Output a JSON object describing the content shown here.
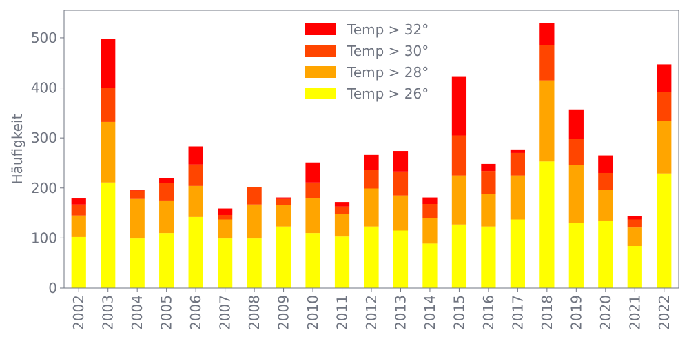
{
  "chart_data": {
    "type": "bar",
    "stacked": true,
    "title": "",
    "xlabel": "",
    "ylabel": "Häufigkeit",
    "ylim": [
      0,
      555
    ],
    "yticks": [
      0,
      100,
      200,
      300,
      400,
      500
    ],
    "categories": [
      "2002",
      "2003",
      "2004",
      "2005",
      "2006",
      "2007",
      "2008",
      "2009",
      "2010",
      "2011",
      "2012",
      "2013",
      "2014",
      "2015",
      "2016",
      "2017",
      "2018",
      "2019",
      "2020",
      "2021",
      "2022"
    ],
    "series": [
      {
        "name": "Temp > 26°",
        "color": "#ffff00",
        "values": [
          102,
          211,
          99,
          110,
          142,
          99,
          99,
          123,
          110,
          103,
          123,
          115,
          89,
          127,
          123,
          137,
          253,
          130,
          135,
          84,
          229
        ]
      },
      {
        "name": "Temp > 28°",
        "color": "#ffa500",
        "values": [
          43,
          121,
          79,
          65,
          62,
          38,
          68,
          43,
          69,
          45,
          76,
          70,
          51,
          98,
          65,
          88,
          162,
          116,
          61,
          37,
          105
        ]
      },
      {
        "name": "Temp > 30°",
        "color": "#ff4500",
        "values": [
          22,
          68,
          17,
          35,
          43,
          9,
          35,
          12,
          32,
          15,
          37,
          48,
          28,
          80,
          46,
          45,
          70,
          52,
          34,
          16,
          58
        ]
      },
      {
        "name": "Temp > 32°",
        "color": "#ff0000",
        "values": [
          12,
          98,
          1,
          10,
          36,
          13,
          0,
          3,
          40,
          9,
          30,
          41,
          13,
          117,
          14,
          7,
          45,
          59,
          35,
          7,
          55
        ]
      }
    ],
    "legend": {
      "position": "top-center",
      "order": [
        "Temp > 32°",
        "Temp > 30°",
        "Temp > 28°",
        "Temp > 26°"
      ]
    },
    "grid": false
  }
}
